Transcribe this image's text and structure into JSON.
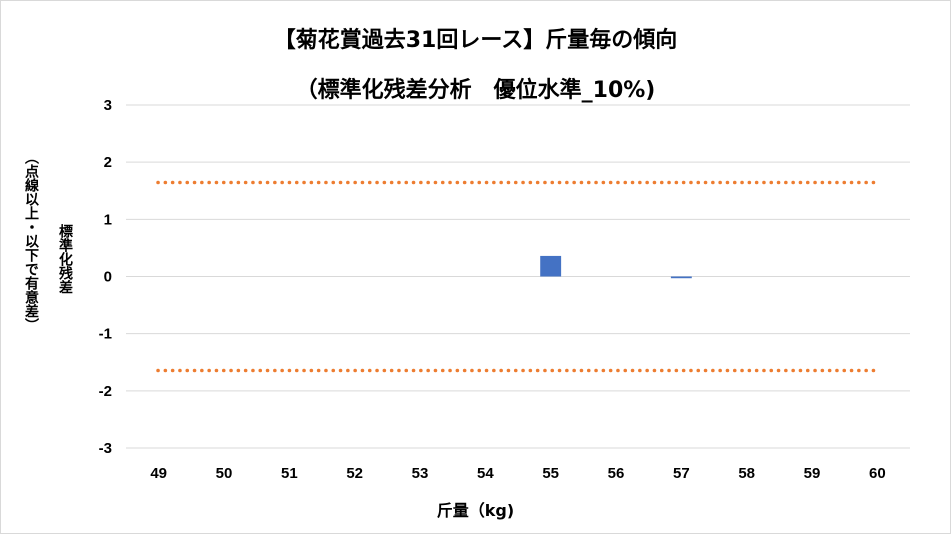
{
  "chart_data": {
    "type": "bar",
    "title_line1": "【菊花賞過去31回レース】斤量毎の傾向",
    "title_line2": "（標準化残差分析　優位水準_10%)",
    "ylabel_main": "標準化残差",
    "ylabel_sub": "（点線以上・以下で有意差）",
    "xlabel": "斤量（kg)",
    "categories": [
      "49",
      "50",
      "51",
      "52",
      "53",
      "54",
      "55",
      "56",
      "57",
      "58",
      "59",
      "60"
    ],
    "values": [
      0,
      0,
      0,
      0,
      0,
      0,
      0.36,
      0,
      -0.03,
      0,
      0,
      0
    ],
    "ylim": [
      -3,
      3
    ],
    "yticks": [
      "3",
      "2",
      "1",
      "0",
      "-1",
      "-2",
      "-3"
    ],
    "thresholds": [
      1.645,
      -1.645
    ],
    "grid": true,
    "bar_color": "#4472C4",
    "threshold_color": "#ED7D31",
    "grid_color": "#d9d9d9"
  }
}
